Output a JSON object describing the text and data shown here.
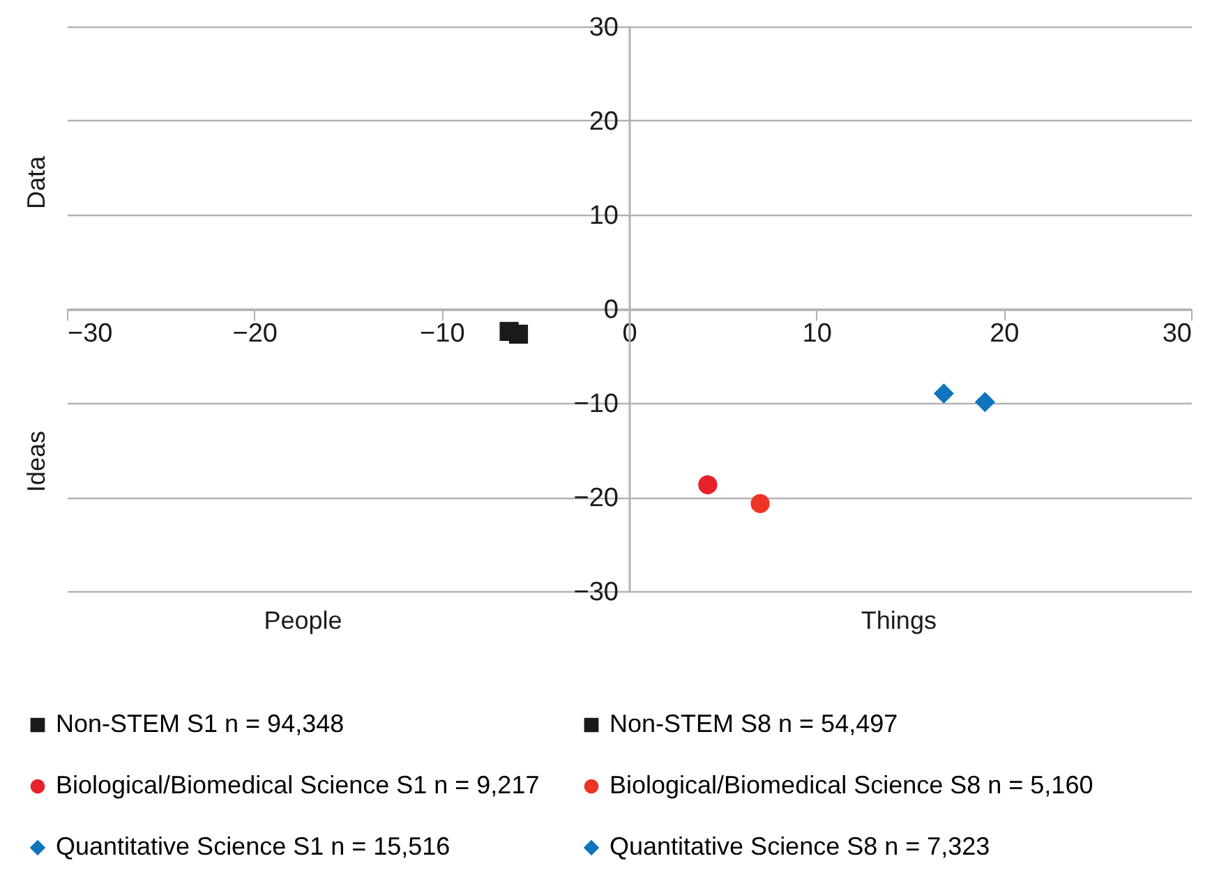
{
  "chart_data": {
    "type": "scatter",
    "annotations": [
      "Data",
      "Ideas",
      "People",
      "Things"
    ],
    "xlim": [
      -30,
      30
    ],
    "xticks": [
      -30,
      -20,
      -10,
      0,
      10,
      20,
      30
    ],
    "ylim": [
      -30,
      30
    ],
    "yticks": [
      -30,
      -20,
      -10,
      0,
      10,
      20,
      30
    ],
    "grid": "y",
    "legend": "bottom",
    "series": [
      {
        "name": "Non-STEM S1 n = 94,348",
        "color": "#1a1a1a",
        "marker": "square",
        "x": [
          -5.9
        ],
        "values": [
          -2.7
        ]
      },
      {
        "name": "Non-STEM S8 n = 54,497",
        "color": "#1a1a1a",
        "marker": "square",
        "x": [
          -6.4
        ],
        "values": [
          -2.4
        ]
      },
      {
        "name": "Biological/Biomedical Science S1 n = 9,217",
        "color": "#e8212b",
        "marker": "circle",
        "x": [
          4.2
        ],
        "values": [
          -18.7
        ]
      },
      {
        "name": "Biological/Biomedical Science S8 n = 5,160",
        "color": "#ee3424",
        "marker": "circle",
        "x": [
          7.0
        ],
        "values": [
          -20.7
        ]
      },
      {
        "name": "Quantitative Science S1 n = 15,516",
        "color": "#0f75bc",
        "marker": "diamond",
        "x": [
          16.8
        ],
        "values": [
          -9.0
        ]
      },
      {
        "name": "Quantitative Science S8 n = 7,323",
        "color": "#0f75bc",
        "marker": "diamond",
        "x": [
          19.0
        ],
        "values": [
          -9.9
        ]
      }
    ]
  }
}
